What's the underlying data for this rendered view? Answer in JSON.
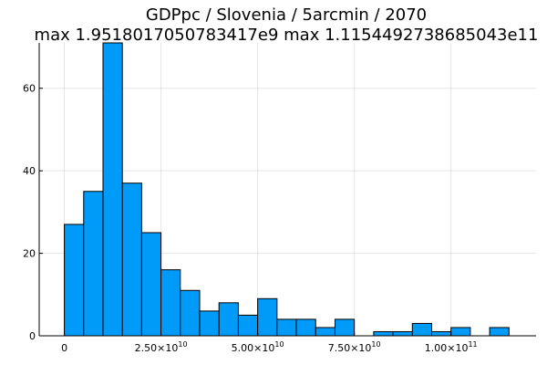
{
  "chart_data": {
    "type": "bar",
    "title": "GDPpc / Slovenia / 5arcmin / 2070",
    "subtitle": "max 1.9518017050783417e9  max 1.1154492738685043e11",
    "xlabel": "",
    "ylabel": "",
    "bin_width": 5000000000,
    "bins": [
      {
        "x0": 0,
        "value": 27
      },
      {
        "x0": 5000000000,
        "value": 35
      },
      {
        "x0": 10000000000,
        "value": 71
      },
      {
        "x0": 15000000000,
        "value": 37
      },
      {
        "x0": 20000000000,
        "value": 25
      },
      {
        "x0": 25000000000,
        "value": 16
      },
      {
        "x0": 30000000000,
        "value": 11
      },
      {
        "x0": 35000000000,
        "value": 6
      },
      {
        "x0": 40000000000,
        "value": 8
      },
      {
        "x0": 45000000000,
        "value": 5
      },
      {
        "x0": 50000000000,
        "value": 9
      },
      {
        "x0": 55000000000,
        "value": 4
      },
      {
        "x0": 60000000000,
        "value": 4
      },
      {
        "x0": 65000000000,
        "value": 2
      },
      {
        "x0": 70000000000,
        "value": 4
      },
      {
        "x0": 80000000000,
        "value": 1
      },
      {
        "x0": 85000000000,
        "value": 1
      },
      {
        "x0": 90000000000,
        "value": 3
      },
      {
        "x0": 95000000000,
        "value": 1
      },
      {
        "x0": 100000000000,
        "value": 2
      },
      {
        "x0": 110000000000,
        "value": 2
      }
    ],
    "xlim": [
      -6500000000,
      122000000000
    ],
    "ylim": [
      0,
      71
    ],
    "x_ticks": [
      {
        "value": 0,
        "mantissa": "0",
        "exponent": ""
      },
      {
        "value": 25000000000,
        "mantissa": "2.50×10",
        "exponent": "10"
      },
      {
        "value": 50000000000,
        "mantissa": "5.00×10",
        "exponent": "10"
      },
      {
        "value": 75000000000,
        "mantissa": "7.50×10",
        "exponent": "10"
      },
      {
        "value": 100000000000,
        "mantissa": "1.00×10",
        "exponent": "11"
      }
    ],
    "y_ticks": [
      {
        "value": 0,
        "label": "0"
      },
      {
        "value": 20,
        "label": "20"
      },
      {
        "value": 40,
        "label": "40"
      },
      {
        "value": 60,
        "label": "60"
      }
    ],
    "grid": true,
    "bar_color": "#009af9",
    "legend": false
  }
}
